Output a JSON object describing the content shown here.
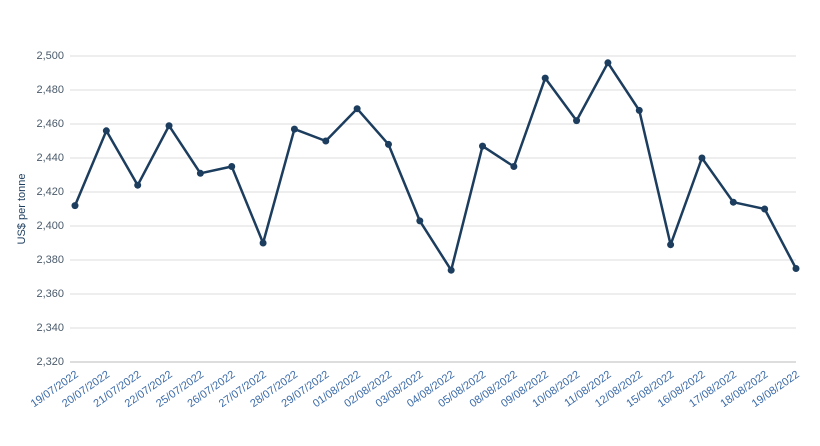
{
  "chart_data": {
    "type": "line",
    "y_label": "US$ per tonne",
    "categories": [
      "19/07/2022",
      "20/07/2022",
      "21/07/2022",
      "22/07/2022",
      "25/07/2022",
      "26/07/2022",
      "27/07/2022",
      "28/07/2022",
      "29/07/2022",
      "01/08/2022",
      "02/08/2022",
      "03/08/2022",
      "04/08/2022",
      "05/08/2022",
      "08/08/2022",
      "09/08/2022",
      "10/08/2022",
      "11/08/2022",
      "12/08/2022",
      "15/08/2022",
      "16/08/2022",
      "17/08/2022",
      "18/08/2022",
      "19/08/2022"
    ],
    "values": [
      2412,
      2456,
      2424,
      2459,
      2431,
      2435,
      2390,
      2457,
      2450,
      2469,
      2448,
      2403,
      2374,
      2447,
      2435,
      2487,
      2462,
      2496,
      2468,
      2389,
      2440,
      2414,
      2410,
      2375
    ],
    "color": "#1c3d5e",
    "ylim": [
      2320,
      2500
    ],
    "yticks": [
      {
        "value": 2320,
        "label": "2,320"
      },
      {
        "value": 2340,
        "label": "2,340"
      },
      {
        "value": 2360,
        "label": "2,360"
      },
      {
        "value": 2380,
        "label": "2,380"
      },
      {
        "value": 2400,
        "label": "2,400"
      },
      {
        "value": 2420,
        "label": "2,420"
      },
      {
        "value": 2440,
        "label": "2,440"
      },
      {
        "value": 2460,
        "label": "2,460"
      },
      {
        "value": 2480,
        "label": "2,480"
      },
      {
        "value": 2500,
        "label": "2,500"
      }
    ],
    "grid": true
  }
}
